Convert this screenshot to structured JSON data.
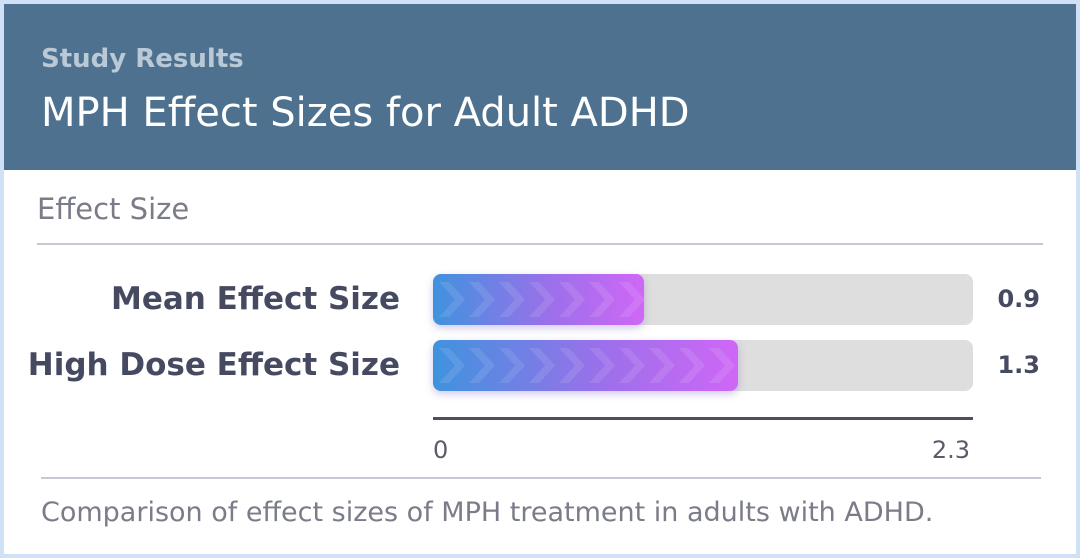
{
  "header": {
    "eyebrow": "Study Results",
    "title": "MPH Effect Sizes for Adult ADHD"
  },
  "section_label": "Effect Size",
  "caption": "Comparison of effect sizes of MPH treatment in adults with ADHD.",
  "colors": {
    "header_bg": "#4d718e",
    "bar_gradient_start": "#3f93de",
    "bar_gradient_end": "#cf67f6",
    "track": "#dedede",
    "text_dark": "#464a61"
  },
  "chart_data": {
    "type": "bar",
    "orientation": "horizontal",
    "title": "Effect Size",
    "categories": [
      "Mean Effect Size",
      "High Dose Effect Size"
    ],
    "values": [
      0.9,
      1.3
    ],
    "value_labels": [
      "0.9",
      "1.3"
    ],
    "xlim": [
      0,
      2.3
    ],
    "tick_labels": [
      "0",
      "2.3"
    ],
    "grid": false,
    "legend": "none"
  }
}
